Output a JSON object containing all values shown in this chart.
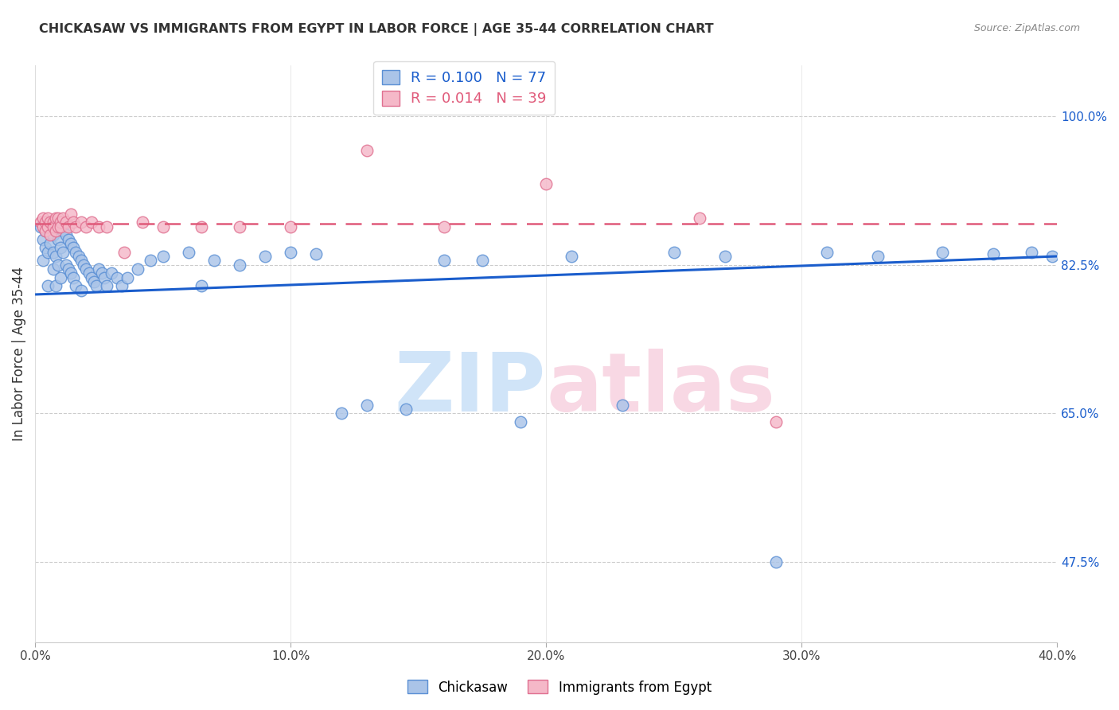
{
  "title": "CHICKASAW VS IMMIGRANTS FROM EGYPT IN LABOR FORCE | AGE 35-44 CORRELATION CHART",
  "source": "Source: ZipAtlas.com",
  "ylabel": "In Labor Force | Age 35-44",
  "xlim": [
    0.0,
    0.4
  ],
  "ylim": [
    0.38,
    1.06
  ],
  "xtick_labels": [
    "0.0%",
    "10.0%",
    "20.0%",
    "30.0%",
    "40.0%"
  ],
  "xtick_vals": [
    0.0,
    0.1,
    0.2,
    0.3,
    0.4
  ],
  "ytick_labels": [
    "47.5%",
    "65.0%",
    "82.5%",
    "100.0%"
  ],
  "ytick_vals": [
    0.475,
    0.65,
    0.825,
    1.0
  ],
  "blue_R": "0.100",
  "blue_N": "77",
  "pink_R": "0.014",
  "pink_N": "39",
  "blue_fill": "#aac4e8",
  "blue_edge": "#5a8fd4",
  "pink_fill": "#f5b8c8",
  "pink_edge": "#e07090",
  "blue_line": "#1a5dcc",
  "pink_line": "#e05a7a",
  "watermark_blue": "#d0e4f8",
  "watermark_pink": "#f8d8e4",
  "legend_blue": "Chickasaw",
  "legend_pink": "Immigrants from Egypt",
  "blue_x": [
    0.002,
    0.003,
    0.003,
    0.004,
    0.004,
    0.005,
    0.005,
    0.005,
    0.006,
    0.006,
    0.007,
    0.007,
    0.007,
    0.008,
    0.008,
    0.008,
    0.009,
    0.009,
    0.01,
    0.01,
    0.01,
    0.011,
    0.011,
    0.012,
    0.012,
    0.013,
    0.013,
    0.014,
    0.014,
    0.015,
    0.015,
    0.016,
    0.016,
    0.017,
    0.018,
    0.018,
    0.019,
    0.02,
    0.021,
    0.022,
    0.023,
    0.024,
    0.025,
    0.026,
    0.027,
    0.028,
    0.03,
    0.032,
    0.034,
    0.036,
    0.04,
    0.045,
    0.05,
    0.06,
    0.065,
    0.07,
    0.08,
    0.09,
    0.1,
    0.11,
    0.12,
    0.13,
    0.145,
    0.16,
    0.175,
    0.19,
    0.21,
    0.23,
    0.25,
    0.27,
    0.29,
    0.31,
    0.33,
    0.355,
    0.375,
    0.39,
    0.398
  ],
  "blue_y": [
    0.87,
    0.855,
    0.83,
    0.865,
    0.845,
    0.87,
    0.84,
    0.8,
    0.875,
    0.85,
    0.86,
    0.84,
    0.82,
    0.865,
    0.835,
    0.8,
    0.855,
    0.825,
    0.87,
    0.845,
    0.81,
    0.865,
    0.84,
    0.86,
    0.825,
    0.855,
    0.82,
    0.85,
    0.815,
    0.845,
    0.81,
    0.84,
    0.8,
    0.835,
    0.83,
    0.795,
    0.825,
    0.82,
    0.815,
    0.81,
    0.805,
    0.8,
    0.82,
    0.815,
    0.81,
    0.8,
    0.815,
    0.81,
    0.8,
    0.81,
    0.82,
    0.83,
    0.835,
    0.84,
    0.8,
    0.83,
    0.825,
    0.835,
    0.84,
    0.838,
    0.65,
    0.66,
    0.655,
    0.83,
    0.83,
    0.64,
    0.835,
    0.66,
    0.84,
    0.835,
    0.475,
    0.84,
    0.835,
    0.84,
    0.838,
    0.84,
    0.835
  ],
  "pink_x": [
    0.002,
    0.003,
    0.003,
    0.004,
    0.004,
    0.005,
    0.005,
    0.006,
    0.006,
    0.007,
    0.007,
    0.008,
    0.008,
    0.009,
    0.009,
    0.01,
    0.01,
    0.011,
    0.012,
    0.013,
    0.014,
    0.015,
    0.016,
    0.018,
    0.02,
    0.022,
    0.025,
    0.028,
    0.035,
    0.042,
    0.05,
    0.065,
    0.08,
    0.1,
    0.13,
    0.16,
    0.2,
    0.26,
    0.29
  ],
  "pink_y": [
    0.875,
    0.88,
    0.87,
    0.875,
    0.865,
    0.88,
    0.87,
    0.875,
    0.86,
    0.875,
    0.87,
    0.88,
    0.865,
    0.88,
    0.87,
    0.875,
    0.87,
    0.88,
    0.875,
    0.87,
    0.885,
    0.875,
    0.87,
    0.875,
    0.87,
    0.875,
    0.87,
    0.87,
    0.84,
    0.875,
    0.87,
    0.87,
    0.87,
    0.87,
    0.96,
    0.87,
    0.92,
    0.88,
    0.64
  ],
  "blue_trend_x": [
    0.0,
    0.4
  ],
  "blue_trend_y": [
    0.79,
    0.835
  ],
  "pink_trend_x": [
    0.0,
    0.4
  ],
  "pink_trend_y": [
    0.873,
    0.873
  ]
}
